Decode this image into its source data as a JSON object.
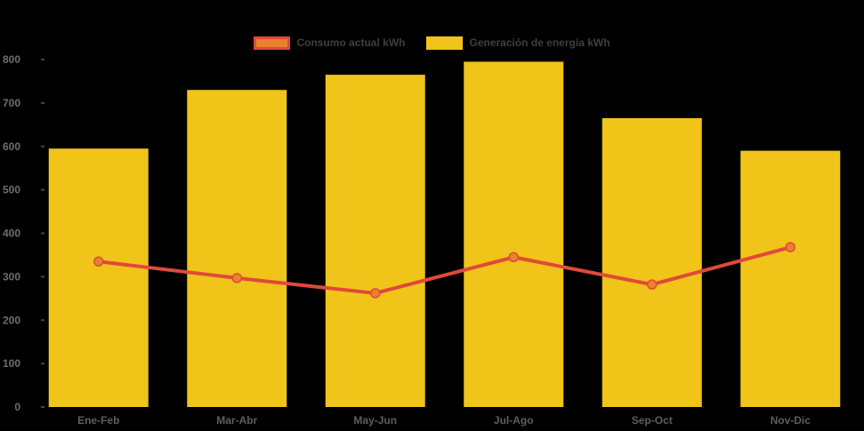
{
  "chart_data": {
    "type": "bar",
    "subtype": "bar+line combo",
    "title": "",
    "xlabel": "",
    "ylabel": "",
    "categories": [
      "Ene-Feb",
      "Mar-Abr",
      "May-Jun",
      "Jul-Ago",
      "Sep-Oct",
      "Nov-Dic"
    ],
    "series": [
      {
        "name": "Consumo actual kWh",
        "type": "line",
        "color": "#E0493A",
        "marker_color": "#E8822E",
        "values": [
          335,
          297,
          262,
          345,
          282,
          368
        ]
      },
      {
        "name": "Generación de energía kWh",
        "type": "bar",
        "color": "#F0C419",
        "values": [
          595,
          730,
          765,
          795,
          665,
          590
        ]
      }
    ],
    "y_ticks": [
      0,
      100,
      200,
      300,
      400,
      500,
      600,
      700,
      800
    ],
    "ylim": [
      0,
      800
    ],
    "grid": false,
    "legend_position": "top-center",
    "background_color": "#000000",
    "y_axis_text_color": "#6E6E6E",
    "x_axis_text_color": "#5E5E5E",
    "axis_tick_color": "#454545",
    "legend_text_color": "#3F3F3F"
  }
}
